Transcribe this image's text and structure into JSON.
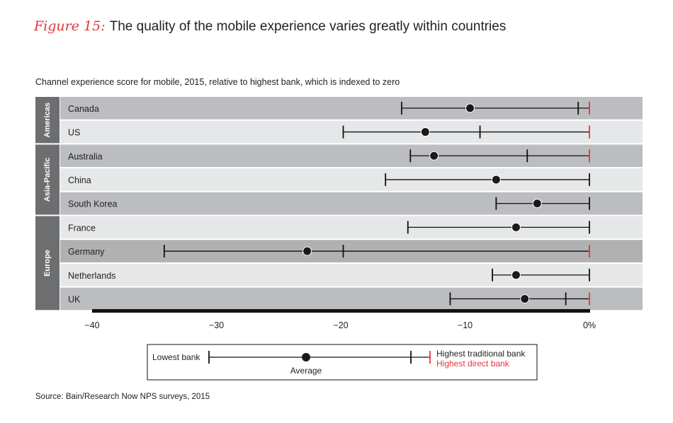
{
  "title": {
    "figure": "Figure 15:",
    "text": "The quality of the mobile experience varies greatly within countries"
  },
  "subtitle": "Channel experience score for mobile, 2015, relative to highest bank, which is indexed to zero",
  "source": "Source: Bain/Research Now NPS surveys, 2015",
  "colors": {
    "red": "#e5343a",
    "dark_row": "#bcbdc0",
    "light_row": "#e6e7e8",
    "highlight_row": "#b1b1b1",
    "region": "#6d6e70"
  },
  "chart_data": {
    "type": "range-dot",
    "title": "The quality of the mobile experience varies greatly within countries",
    "xlabel": "Channel experience score for mobile, 2015, relative to highest bank, which is indexed to zero",
    "xlim": [
      -40,
      0
    ],
    "xticks": [
      "−40",
      "−30",
      "−20",
      "−10",
      "0%"
    ],
    "xtick_values": [
      -40,
      -30,
      -20,
      -10,
      0
    ],
    "regions": [
      {
        "name": "Americas",
        "count": 2
      },
      {
        "name": "Asia-Pacific",
        "count": 3
      },
      {
        "name": "Europe",
        "count": 4
      }
    ],
    "rows": [
      {
        "country": "Canada",
        "lowest": -15.1,
        "average": -9.6,
        "highest_traditional": -0.9,
        "highest_direct": 0
      },
      {
        "country": "US",
        "lowest": -19.8,
        "average": -13.2,
        "highest_traditional": -8.8,
        "highest_direct": 0
      },
      {
        "country": "Australia",
        "lowest": -14.4,
        "average": -12.5,
        "highest_traditional": -5.0,
        "highest_direct": 0
      },
      {
        "country": "China",
        "lowest": -16.4,
        "average": -7.5,
        "highest_traditional": 0,
        "highest_direct": null
      },
      {
        "country": "South Korea",
        "lowest": -7.5,
        "average": -4.2,
        "highest_traditional": 0,
        "highest_direct": null
      },
      {
        "country": "France",
        "lowest": -14.6,
        "average": -5.9,
        "highest_traditional": 0,
        "highest_direct": null
      },
      {
        "country": "Germany",
        "lowest": -34.2,
        "average": -22.7,
        "highest_traditional": -19.8,
        "highest_direct": 0,
        "highlight": true
      },
      {
        "country": "Netherlands",
        "lowest": -7.8,
        "average": -5.9,
        "highest_traditional": 0,
        "highest_direct": null
      },
      {
        "country": "UK",
        "lowest": -11.2,
        "average": -5.2,
        "highest_traditional": -1.9,
        "highest_direct": 0
      }
    ],
    "legend": {
      "lowest": "Lowest bank",
      "average": "Average",
      "traditional": "Highest traditional bank",
      "direct": "Highest direct bank",
      "placement": "bottom-center"
    }
  }
}
